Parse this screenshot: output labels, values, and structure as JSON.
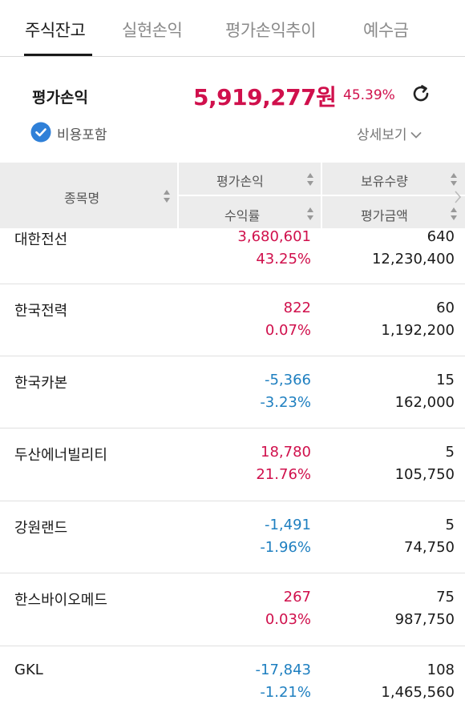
{
  "tabs": [
    {
      "label": "주식잔고",
      "active": true
    },
    {
      "label": "실현손익",
      "active": false
    },
    {
      "label": "평가손익추이",
      "active": false
    },
    {
      "label": "예수금",
      "active": false
    }
  ],
  "summary": {
    "label": "평가손익",
    "amount": "5,919,277원",
    "rate": "45.39%",
    "include_fees_label": "비용포함",
    "include_fees_checked": true,
    "detail_label": "상세보기"
  },
  "table": {
    "headers": {
      "name": "종목명",
      "pnl": "평가손익",
      "rate": "수익률",
      "qty": "보유수량",
      "value": "평가금액"
    },
    "rows": [
      {
        "name": "대한전선",
        "pnl": "3,680,601",
        "rate": "43.25%",
        "qty": "640",
        "value": "12,230,400",
        "sign": "pos"
      },
      {
        "name": "한국전력",
        "pnl": "822",
        "rate": "0.07%",
        "qty": "60",
        "value": "1,192,200",
        "sign": "pos"
      },
      {
        "name": "한국카본",
        "pnl": "-5,366",
        "rate": "-3.23%",
        "qty": "15",
        "value": "162,000",
        "sign": "neg"
      },
      {
        "name": "두산에너빌리티",
        "pnl": "18,780",
        "rate": "21.76%",
        "qty": "5",
        "value": "105,750",
        "sign": "pos"
      },
      {
        "name": "강원랜드",
        "pnl": "-1,491",
        "rate": "-1.96%",
        "qty": "5",
        "value": "74,750",
        "sign": "neg"
      },
      {
        "name": "한스바이오메드",
        "pnl": "267",
        "rate": "0.03%",
        "qty": "75",
        "value": "987,750",
        "sign": "pos"
      },
      {
        "name": "GKL",
        "pnl": "-17,843",
        "rate": "-1.21%",
        "qty": "108",
        "value": "1,465,560",
        "sign": "neg"
      }
    ]
  },
  "colors": {
    "positive": "#d0104c",
    "negative": "#1e7fc0",
    "accent_check": "#2f80d8"
  },
  "icons": [
    "refresh-icon",
    "check-circle-icon",
    "chevron-down-icon",
    "sort-icon",
    "chevron-right-icon"
  ]
}
